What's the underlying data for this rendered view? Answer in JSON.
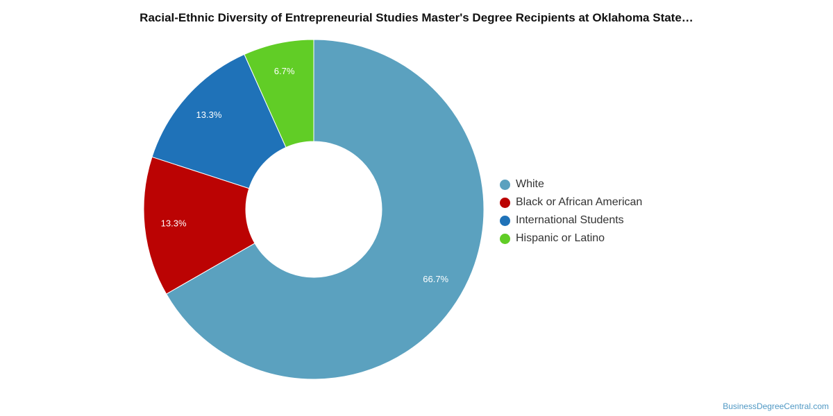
{
  "chart_data": {
    "type": "pie",
    "variant": "donut",
    "title": "Racial-Ethnic Diversity of Entrepreneurial Studies Master's Degree Recipients at Oklahoma State…",
    "legend_position": "right",
    "slices": [
      {
        "name": "White",
        "value": 66.7,
        "label": "66.7%",
        "color": "#5ba1bf"
      },
      {
        "name": "Black or African American",
        "value": 13.3,
        "label": "13.3%",
        "color": "#bb0303"
      },
      {
        "name": "International Students",
        "value": 13.3,
        "label": "13.3%",
        "color": "#1f72b8"
      },
      {
        "name": "Hispanic or Latino",
        "value": 6.7,
        "label": "6.7%",
        "color": "#61cd26"
      }
    ]
  },
  "source": "BusinessDegreeCentral.com"
}
